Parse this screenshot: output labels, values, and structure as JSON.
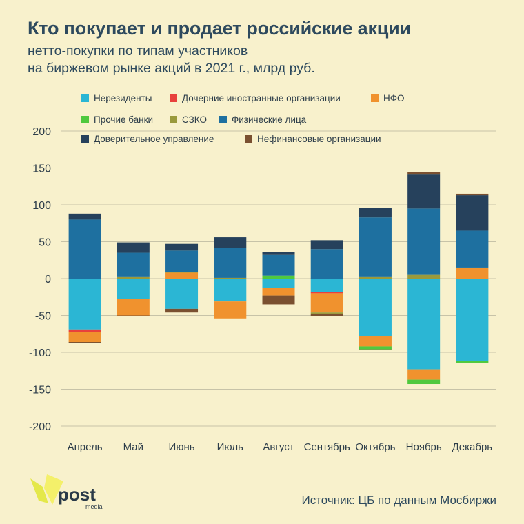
{
  "title": "Кто покупает и продает российские акции",
  "subtitle_line1": "нетто-покупки по типам участников",
  "subtitle_line2": "на биржевом рынке акций в 2021 г., млрд руб.",
  "source": "Источник: ЦБ по данным Мосбиржи",
  "logo": {
    "word": "post",
    "sub": "media"
  },
  "chart_data": {
    "type": "bar",
    "stacked": true,
    "ylim": [
      -200,
      200
    ],
    "yticks": [
      200,
      150,
      100,
      50,
      0,
      -50,
      -100,
      -150,
      -200
    ],
    "grid": true,
    "categories": [
      "Апрель",
      "Май",
      "Июнь",
      "Июль",
      "Август",
      "Сентябрь",
      "Октябрь",
      "Ноябрь",
      "Декабрь"
    ],
    "series": [
      {
        "name": "Нерезиденты",
        "color": "#2bb6d4",
        "values": [
          -69,
          -28,
          -41,
          -31,
          -13,
          -18,
          -78,
          -123,
          -112
        ]
      },
      {
        "name": "Дочерние иностранные организации",
        "color": "#e8413c",
        "values": [
          -3,
          0,
          0,
          0,
          0,
          -2,
          0,
          0,
          0
        ]
      },
      {
        "name": "НФО",
        "color": "#f0922e",
        "values": [
          -14,
          -22,
          8,
          -23,
          -10,
          -26,
          -14,
          -14,
          14
        ]
      },
      {
        "name": "Прочие банки",
        "color": "#4fc93e",
        "values": [
          0,
          0,
          0,
          0,
          4,
          0,
          -4,
          -6,
          -2
        ]
      },
      {
        "name": "СЗКО",
        "color": "#9a9a3c",
        "values": [
          0,
          2,
          1,
          1,
          0,
          -2,
          2,
          5,
          1
        ]
      },
      {
        "name": "Физические лица",
        "color": "#1e70a0",
        "values": [
          80,
          33,
          29,
          41,
          28,
          40,
          81,
          90,
          50
        ]
      },
      {
        "name": "Доверительное управление",
        "color": "#26415c",
        "values": [
          8,
          14,
          9,
          14,
          4,
          12,
          13,
          46,
          48
        ]
      },
      {
        "name": "Нефинансовые организации",
        "color": "#7a5030",
        "values": [
          -1,
          -1,
          -5,
          0,
          -12,
          -3,
          -1,
          3,
          2
        ]
      }
    ]
  }
}
